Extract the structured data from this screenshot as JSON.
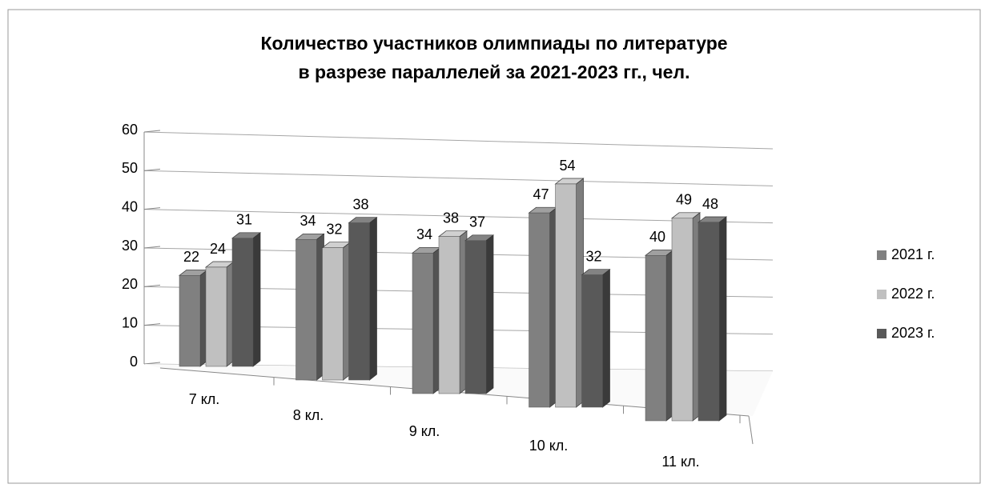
{
  "chart_data": {
    "type": "bar",
    "title": [
      "Количество участников олимпиады по литературе",
      "в разрезе параллелей за 2021-2023 гг., чел."
    ],
    "categories": [
      "7 кл.",
      "8 кл.",
      "9 кл.",
      "10 кл.",
      "11 кл."
    ],
    "series": [
      {
        "name": "2021 г.",
        "color": "#808080",
        "values": [
          22,
          34,
          34,
          47,
          40
        ]
      },
      {
        "name": "2022 г.",
        "color": "#c0c0c0",
        "values": [
          24,
          32,
          38,
          54,
          49
        ]
      },
      {
        "name": "2023 г.",
        "color": "#595959",
        "values": [
          31,
          38,
          37,
          32,
          48
        ]
      }
    ],
    "ylim": [
      0,
      60
    ],
    "yticks": [
      0,
      10,
      20,
      30,
      40,
      50,
      60
    ],
    "grid": true,
    "legend": "right"
  }
}
